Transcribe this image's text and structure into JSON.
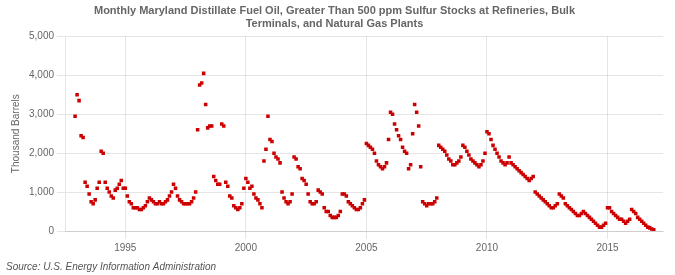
{
  "chart_data": {
    "type": "scatter",
    "title": "Monthly Maryland Distillate Fuel Oil, Greater Than 500 ppm Sulfur Stocks at Refineries, Bulk\nTerminals, and Natural Gas Plants",
    "ylabel": "Thousand Barrels",
    "source": "Source: U.S. Energy Information Administration",
    "xlim": [
      1992.5,
      2017.3
    ],
    "ylim": [
      0,
      5000
    ],
    "xticks": [
      1995,
      2000,
      2005,
      2010,
      2015
    ],
    "yticks": [
      0,
      {
        "value": 1000,
        "label": "1,000"
      },
      {
        "value": 2000,
        "label": "2,000"
      },
      {
        "value": 3000,
        "label": "3,000"
      },
      {
        "value": 4000,
        "label": "4,000"
      },
      {
        "value": 5000,
        "label": "5,000"
      }
    ],
    "grid": true,
    "color": "#cc0000",
    "marker": "square",
    "x": [
      1992.917,
      1993.0,
      1993.083,
      1993.167,
      1993.25,
      1993.333,
      1993.417,
      1993.5,
      1993.583,
      1993.667,
      1993.75,
      1993.833,
      1993.917,
      1994.0,
      1994.083,
      1994.167,
      1994.25,
      1994.333,
      1994.417,
      1994.5,
      1994.583,
      1994.667,
      1994.75,
      1994.833,
      1994.917,
      1995.0,
      1995.083,
      1995.167,
      1995.25,
      1995.333,
      1995.417,
      1995.5,
      1995.583,
      1995.667,
      1995.75,
      1995.833,
      1995.917,
      1996.0,
      1996.083,
      1996.167,
      1996.25,
      1996.333,
      1996.417,
      1996.5,
      1996.583,
      1996.667,
      1996.75,
      1996.833,
      1996.917,
      1997.0,
      1997.083,
      1997.167,
      1997.25,
      1997.333,
      1997.417,
      1997.5,
      1997.583,
      1997.667,
      1997.75,
      1997.833,
      1997.917,
      1998.0,
      1998.083,
      1998.167,
      1998.25,
      1998.333,
      1998.417,
      1998.5,
      1998.583,
      1998.667,
      1998.75,
      1998.833,
      1998.917,
      1999.0,
      1999.083,
      1999.167,
      1999.25,
      1999.333,
      1999.417,
      1999.5,
      1999.583,
      1999.667,
      1999.75,
      1999.833,
      1999.917,
      2000.0,
      2000.083,
      2000.167,
      2000.25,
      2000.333,
      2000.417,
      2000.5,
      2000.583,
      2000.667,
      2000.75,
      2000.833,
      2000.917,
      2001.0,
      2001.083,
      2001.167,
      2001.25,
      2001.333,
      2001.417,
      2001.5,
      2001.583,
      2001.667,
      2001.75,
      2001.833,
      2001.917,
      2002.0,
      2002.083,
      2002.167,
      2002.25,
      2002.333,
      2002.417,
      2002.5,
      2002.583,
      2002.667,
      2002.75,
      2002.833,
      2002.917,
      2003.0,
      2003.083,
      2003.167,
      2003.25,
      2003.333,
      2003.417,
      2003.5,
      2003.583,
      2003.667,
      2003.75,
      2003.833,
      2003.917,
      2004.0,
      2004.083,
      2004.167,
      2004.25,
      2004.333,
      2004.417,
      2004.5,
      2004.583,
      2004.667,
      2004.75,
      2004.833,
      2004.917,
      2005.0,
      2005.083,
      2005.167,
      2005.25,
      2005.333,
      2005.417,
      2005.5,
      2005.583,
      2005.667,
      2005.75,
      2005.833,
      2005.917,
      2006.0,
      2006.083,
      2006.167,
      2006.25,
      2006.333,
      2006.417,
      2006.5,
      2006.583,
      2006.667,
      2006.75,
      2006.833,
      2006.917,
      2007.0,
      2007.083,
      2007.167,
      2007.25,
      2007.333,
      2007.417,
      2007.5,
      2007.583,
      2007.667,
      2007.75,
      2007.833,
      2007.917,
      2008.0,
      2008.083,
      2008.167,
      2008.25,
      2008.333,
      2008.417,
      2008.5,
      2008.583,
      2008.667,
      2008.75,
      2008.833,
      2008.917,
      2009.0,
      2009.083,
      2009.167,
      2009.25,
      2009.333,
      2009.417,
      2009.5,
      2009.583,
      2009.667,
      2009.75,
      2009.833,
      2009.917,
      2010.0,
      2010.083,
      2010.167,
      2010.25,
      2010.333,
      2010.417,
      2010.5,
      2010.583,
      2010.667,
      2010.75,
      2010.833,
      2010.917,
      2011.0,
      2011.083,
      2011.167,
      2011.25,
      2011.333,
      2011.417,
      2011.5,
      2011.583,
      2011.667,
      2011.75,
      2011.833,
      2011.917,
      2012.0,
      2012.083,
      2012.167,
      2012.25,
      2012.333,
      2012.417,
      2012.5,
      2012.583,
      2012.667,
      2012.75,
      2012.833,
      2012.917,
      2013.0,
      2013.083,
      2013.167,
      2013.25,
      2013.333,
      2013.417,
      2013.5,
      2013.583,
      2013.667,
      2013.75,
      2013.833,
      2013.917,
      2014.0,
      2014.083,
      2014.167,
      2014.25,
      2014.333,
      2014.417,
      2014.5,
      2014.583,
      2014.667,
      2014.75,
      2014.833,
      2014.917,
      2015.0,
      2015.083,
      2015.167,
      2015.25,
      2015.333,
      2015.417,
      2015.5,
      2015.583,
      2015.667,
      2015.75,
      2015.833,
      2015.917,
      2016.0,
      2016.083,
      2016.167,
      2016.25,
      2016.333,
      2016.417,
      2016.5,
      2016.583,
      2016.667,
      2016.75,
      2016.833,
      2016.917
    ],
    "values": [
      2950,
      3500,
      3350,
      2450,
      2400,
      1250,
      1150,
      950,
      750,
      700,
      800,
      1100,
      1250,
      2050,
      2000,
      1250,
      1100,
      1000,
      900,
      850,
      1050,
      1100,
      1200,
      1300,
      1100,
      1100,
      900,
      750,
      700,
      600,
      600,
      600,
      550,
      550,
      600,
      650,
      750,
      850,
      800,
      750,
      700,
      700,
      750,
      700,
      700,
      750,
      800,
      900,
      1000,
      1200,
      1100,
      900,
      800,
      750,
      700,
      700,
      700,
      700,
      750,
      850,
      1000,
      2600,
      3750,
      3800,
      4050,
      3250,
      2650,
      2700,
      2700,
      1400,
      1300,
      1200,
      1200,
      2750,
      2700,
      1250,
      1150,
      900,
      850,
      650,
      600,
      550,
      600,
      700,
      1100,
      1350,
      1250,
      1100,
      1150,
      950,
      850,
      800,
      700,
      600,
      1800,
      2100,
      2950,
      2350,
      2300,
      2000,
      1900,
      1850,
      1750,
      1000,
      850,
      750,
      700,
      750,
      950,
      1900,
      1850,
      1650,
      1600,
      1350,
      1300,
      1200,
      950,
      750,
      700,
      700,
      750,
      1050,
      1000,
      950,
      600,
      500,
      500,
      400,
      350,
      350,
      350,
      400,
      500,
      950,
      950,
      900,
      750,
      700,
      650,
      600,
      550,
      550,
      600,
      700,
      800,
      2250,
      2200,
      2150,
      2100,
      2000,
      1800,
      1700,
      1650,
      1600,
      1650,
      1750,
      2350,
      3050,
      3000,
      2750,
      2600,
      2450,
      2350,
      2150,
      2050,
      2000,
      1600,
      1700,
      2500,
      3250,
      3050,
      2700,
      1650,
      750,
      700,
      650,
      700,
      700,
      700,
      750,
      850,
      2200,
      2150,
      2100,
      2050,
      1950,
      1850,
      1800,
      1700,
      1700,
      1750,
      1800,
      1900,
      2200,
      2150,
      2050,
      1950,
      1850,
      1800,
      1750,
      1700,
      1650,
      1700,
      1800,
      2000,
      2550,
      2500,
      2350,
      2200,
      2100,
      2000,
      1900,
      1800,
      1750,
      1700,
      1750,
      1900,
      1750,
      1700,
      1650,
      1600,
      1550,
      1500,
      1450,
      1400,
      1350,
      1300,
      1350,
      1400,
      1000,
      950,
      900,
      850,
      800,
      750,
      700,
      650,
      600,
      600,
      650,
      700,
      950,
      900,
      850,
      700,
      650,
      600,
      550,
      500,
      450,
      400,
      400,
      450,
      500,
      450,
      400,
      350,
      300,
      250,
      200,
      150,
      100,
      100,
      150,
      200,
      600,
      600,
      500,
      450,
      400,
      350,
      300,
      300,
      250,
      200,
      250,
      300,
      550,
      500,
      450,
      350,
      300,
      250,
      200,
      150,
      100,
      80,
      50,
      30
    ]
  }
}
